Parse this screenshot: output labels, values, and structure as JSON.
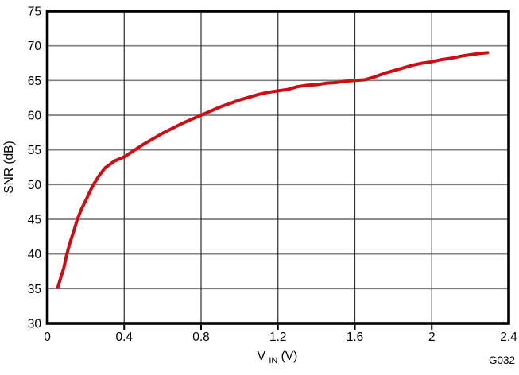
{
  "figure": {
    "code": "G032",
    "code_color": "#8f8f8f"
  },
  "chart_data": {
    "type": "line",
    "title": "",
    "xlabel": {
      "pre": "V",
      "sub": "IN",
      "post": " (V)"
    },
    "ylabel": "SNR (dB)",
    "xlim": [
      0,
      2.4
    ],
    "ylim": [
      30,
      75
    ],
    "xticks": [
      0,
      0.4,
      0.8,
      1.2,
      1.6,
      2,
      2.4
    ],
    "xtick_labels": [
      "0",
      "0.4",
      "0.8",
      "1.2",
      "1.6",
      "2",
      "2.4"
    ],
    "yticks": [
      30,
      35,
      40,
      45,
      50,
      55,
      60,
      65,
      70,
      75
    ],
    "ytick_labels": [
      "30",
      "35",
      "40",
      "45",
      "50",
      "55",
      "60",
      "65",
      "70",
      "75"
    ],
    "grid": true,
    "legend": "none",
    "annotations": [
      "G032"
    ],
    "series": [
      {
        "name": "SNR",
        "color": "#cc0d12",
        "points": [
          [
            0.055,
            35.2
          ],
          [
            0.07,
            36.6
          ],
          [
            0.085,
            37.9
          ],
          [
            0.1,
            39.8
          ],
          [
            0.12,
            41.8
          ],
          [
            0.14,
            43.5
          ],
          [
            0.155,
            44.9
          ],
          [
            0.18,
            46.6
          ],
          [
            0.2,
            47.7
          ],
          [
            0.22,
            48.9
          ],
          [
            0.24,
            50.0
          ],
          [
            0.27,
            51.3
          ],
          [
            0.3,
            52.4
          ],
          [
            0.35,
            53.4
          ],
          [
            0.4,
            54.0
          ],
          [
            0.455,
            55.0
          ],
          [
            0.5,
            55.8
          ],
          [
            0.55,
            56.6
          ],
          [
            0.6,
            57.4
          ],
          [
            0.65,
            58.1
          ],
          [
            0.7,
            58.8
          ],
          [
            0.75,
            59.4
          ],
          [
            0.8,
            60.0
          ],
          [
            0.85,
            60.6
          ],
          [
            0.9,
            61.2
          ],
          [
            0.95,
            61.7
          ],
          [
            1.0,
            62.2
          ],
          [
            1.05,
            62.6
          ],
          [
            1.1,
            63.0
          ],
          [
            1.15,
            63.3
          ],
          [
            1.2,
            63.5
          ],
          [
            1.25,
            63.7
          ],
          [
            1.3,
            64.1
          ],
          [
            1.35,
            64.3
          ],
          [
            1.4,
            64.4
          ],
          [
            1.45,
            64.6
          ],
          [
            1.5,
            64.7
          ],
          [
            1.55,
            64.9
          ],
          [
            1.6,
            65.0
          ],
          [
            1.65,
            65.1
          ],
          [
            1.7,
            65.5
          ],
          [
            1.75,
            66.0
          ],
          [
            1.8,
            66.4
          ],
          [
            1.85,
            66.8
          ],
          [
            1.9,
            67.2
          ],
          [
            1.95,
            67.5
          ],
          [
            2.0,
            67.7
          ],
          [
            2.05,
            68.0
          ],
          [
            2.1,
            68.2
          ],
          [
            2.15,
            68.5
          ],
          [
            2.2,
            68.7
          ],
          [
            2.25,
            68.9
          ],
          [
            2.29,
            69.0
          ]
        ]
      }
    ],
    "style": {
      "h_grid_color": "#7e7e7e",
      "v_grid_color": "#2d2d2d",
      "frame_color": "#000000",
      "background": "#ffffff"
    }
  }
}
